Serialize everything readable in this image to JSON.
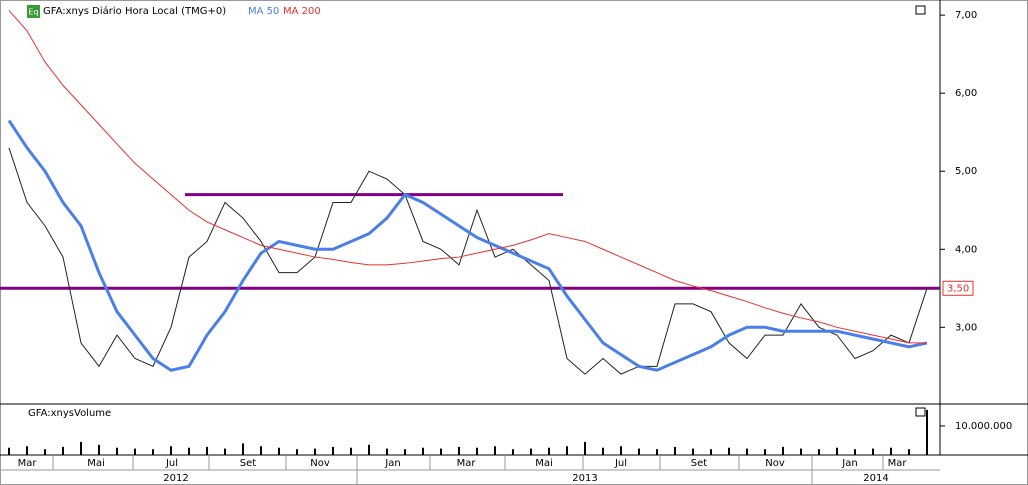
{
  "chart_data": [
    {
      "type": "line",
      "title": "GFA:xnys Diário Hora Local (TMG+0)",
      "icon_label": "Eq",
      "ylim": [
        2.03,
        7.13
      ],
      "yticks": [
        {
          "value": 7,
          "label": "7,00"
        },
        {
          "value": 6,
          "label": "6,00"
        },
        {
          "value": 5,
          "label": "5,00"
        },
        {
          "value": 4,
          "label": "4,00"
        },
        {
          "value": 3,
          "label": "3,00"
        }
      ],
      "last_price": {
        "value": 3.5,
        "label": "3,50"
      },
      "level_lines": [
        {
          "value": 4.7,
          "color": "#800080"
        },
        {
          "value": 3.5,
          "color": "#800080"
        }
      ],
      "months": [
        "Mar",
        "Mai",
        "Jul",
        "Set",
        "Nov",
        "Jan",
        "Mar",
        "Mai",
        "Jul",
        "Set",
        "Nov",
        "Jan",
        "Mar"
      ],
      "years": [
        "2012",
        "2013",
        "2014"
      ],
      "series": [
        {
          "name": "GFA:xnys",
          "color": "#222222",
          "values": [
            5.3,
            4.6,
            4.3,
            3.9,
            2.8,
            2.5,
            2.9,
            2.6,
            2.5,
            3.0,
            3.9,
            4.1,
            4.6,
            4.4,
            4.1,
            3.7,
            3.7,
            3.9,
            4.6,
            4.6,
            5.0,
            4.9,
            4.7,
            4.1,
            4.0,
            3.8,
            4.5,
            3.9,
            4.0,
            3.8,
            3.6,
            2.6,
            2.4,
            2.6,
            2.4,
            2.5,
            2.5,
            3.3,
            3.3,
            3.2,
            2.8,
            2.6,
            2.9,
            2.9,
            3.3,
            3.0,
            2.9,
            2.6,
            2.7,
            2.9,
            2.8,
            3.5
          ]
        },
        {
          "name": "MA 50",
          "color": "#4a7fe8",
          "values": [
            5.65,
            5.3,
            5.0,
            4.6,
            4.3,
            3.7,
            3.2,
            2.9,
            2.6,
            2.45,
            2.5,
            2.9,
            3.2,
            3.6,
            3.95,
            4.1,
            4.05,
            4.0,
            4.0,
            4.1,
            4.2,
            4.4,
            4.7,
            4.6,
            4.45,
            4.3,
            4.15,
            4.05,
            3.95,
            3.85,
            3.75,
            3.4,
            3.1,
            2.8,
            2.65,
            2.5,
            2.45,
            2.55,
            2.65,
            2.75,
            2.9,
            3.0,
            3.0,
            2.95,
            2.95,
            2.95,
            2.95,
            2.9,
            2.85,
            2.8,
            2.75,
            2.8
          ]
        },
        {
          "name": "MA 200",
          "color": "#e83030",
          "values": [
            7.06,
            6.8,
            6.4,
            6.1,
            5.85,
            5.6,
            5.35,
            5.1,
            4.9,
            4.7,
            4.5,
            4.35,
            4.25,
            4.15,
            4.05,
            4.0,
            3.95,
            3.9,
            3.87,
            3.83,
            3.8,
            3.8,
            3.82,
            3.85,
            3.88,
            3.9,
            3.95,
            4.0,
            4.05,
            4.12,
            4.2,
            4.15,
            4.1,
            4.0,
            3.9,
            3.8,
            3.7,
            3.6,
            3.53,
            3.47,
            3.4,
            3.33,
            3.25,
            3.18,
            3.12,
            3.07,
            3.0,
            2.95,
            2.9,
            2.85,
            2.8,
            2.8
          ]
        }
      ]
    },
    {
      "type": "bar",
      "title": "GFA:xnysVolume",
      "ylim": [
        0,
        17200000
      ],
      "yticks": [
        {
          "value": 10000000,
          "label": "10.000.000"
        }
      ],
      "color": "#000000",
      "values": [
        2500000,
        3000000,
        2000000,
        2800000,
        4500000,
        3500000,
        2500000,
        2200000,
        2000000,
        3000000,
        2500000,
        2800000,
        2200000,
        4000000,
        3000000,
        2500000,
        2000000,
        2200000,
        2800000,
        2500000,
        3500000,
        2200000,
        2000000,
        2500000,
        2200000,
        2800000,
        2500000,
        3000000,
        2000000,
        2200000,
        2500000,
        3000000,
        4500000,
        2500000,
        3000000,
        2200000,
        2000000,
        2800000,
        2200000,
        2000000,
        2500000,
        2200000,
        2000000,
        2800000,
        2200000,
        2000000,
        2500000,
        2000000,
        2200000,
        2500000,
        2000000,
        15500000
      ]
    }
  ]
}
